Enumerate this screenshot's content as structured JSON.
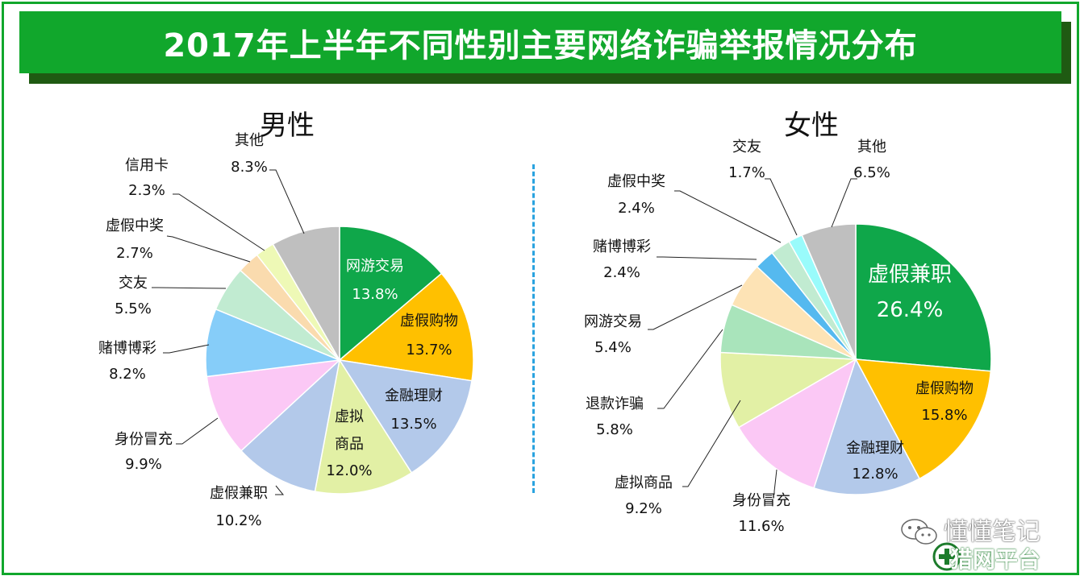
{
  "title": "2017年上半年不同性别主要网络诈骗举报情况分布",
  "watermark": {
    "line1": "懂懂笔记",
    "line2": "猎网平台"
  },
  "chart_data": [
    {
      "type": "pie",
      "title": "男性",
      "slices": [
        {
          "label": "网游交易",
          "display": [
            "网游交易"
          ],
          "value": 13.8,
          "value_text": "13.8%",
          "color": "#0fa74a",
          "label_position": "inside",
          "text_color": "#ffffff"
        },
        {
          "label": "虚假购物",
          "display": [
            "虚假购物"
          ],
          "value": 13.7,
          "value_text": "13.7%",
          "color": "#ffc000",
          "label_position": "inside",
          "text_color": "#111111"
        },
        {
          "label": "金融理财",
          "display": [
            "金融理财"
          ],
          "value": 13.5,
          "value_text": "13.5%",
          "color": "#b3c9ea",
          "label_position": "inside",
          "text_color": "#111111"
        },
        {
          "label": "虚拟商品",
          "display": [
            "虚拟",
            "商品"
          ],
          "value": 12.0,
          "value_text": "12.0%",
          "color": "#e2f0a5",
          "label_position": "inside",
          "text_color": "#111111"
        },
        {
          "label": "虚假兼职",
          "display": [
            "虚假兼职"
          ],
          "value": 10.2,
          "value_text": "10.2%",
          "color": "#b3c9ea",
          "label_position": "outside",
          "text_color": "#111111"
        },
        {
          "label": "身份冒充",
          "display": [
            "身份冒充"
          ],
          "value": 9.9,
          "value_text": "9.9%",
          "color": "#fbc8f5",
          "label_position": "outside",
          "text_color": "#111111"
        },
        {
          "label": "赌博博彩",
          "display": [
            "赌博博彩"
          ],
          "value": 8.2,
          "value_text": "8.2%",
          "color": "#86cdf9",
          "label_position": "outside",
          "text_color": "#111111"
        },
        {
          "label": "交友",
          "display": [
            "交友"
          ],
          "value": 5.5,
          "value_text": "5.5%",
          "color": "#c1ebd1",
          "label_position": "outside",
          "text_color": "#111111"
        },
        {
          "label": "虚假中奖",
          "display": [
            "虚假中奖"
          ],
          "value": 2.7,
          "value_text": "2.7%",
          "color": "#fadbae",
          "label_position": "outside",
          "text_color": "#111111"
        },
        {
          "label": "信用卡",
          "display": [
            "信用卡"
          ],
          "value": 2.3,
          "value_text": "2.3%",
          "color": "#eef9b6",
          "label_position": "outside",
          "text_color": "#111111"
        },
        {
          "label": "其他",
          "display": [
            "其他"
          ],
          "value": 8.3,
          "value_text": "8.3%",
          "color": "#bfbfbf",
          "label_position": "outside",
          "text_color": "#111111"
        }
      ]
    },
    {
      "type": "pie",
      "title": "女性",
      "slices": [
        {
          "label": "虚假兼职",
          "display": [
            "虚假兼职"
          ],
          "value": 26.4,
          "value_text": "26.4%",
          "color": "#0fa74a",
          "label_position": "inside",
          "text_color": "#ffffff"
        },
        {
          "label": "虚假购物",
          "display": [
            "虚假购物"
          ],
          "value": 15.8,
          "value_text": "15.8%",
          "color": "#ffc000",
          "label_position": "inside",
          "text_color": "#111111"
        },
        {
          "label": "金融理财",
          "display": [
            "金融理财"
          ],
          "value": 12.8,
          "value_text": "12.8%",
          "color": "#b3c9ea",
          "label_position": "inside",
          "text_color": "#111111"
        },
        {
          "label": "身份冒充",
          "display": [
            "身份冒充"
          ],
          "value": 11.6,
          "value_text": "11.6%",
          "color": "#fbc8f5",
          "label_position": "outside",
          "text_color": "#111111"
        },
        {
          "label": "虚拟商品",
          "display": [
            "虚拟商品"
          ],
          "value": 9.2,
          "value_text": "9.2%",
          "color": "#e2f0a5",
          "label_position": "outside",
          "text_color": "#111111"
        },
        {
          "label": "退款诈骗",
          "display": [
            "退款诈骗"
          ],
          "value": 5.8,
          "value_text": "5.8%",
          "color": "#a9e4bb",
          "label_position": "outside",
          "text_color": "#111111"
        },
        {
          "label": "网游交易",
          "display": [
            "网游交易"
          ],
          "value": 5.4,
          "value_text": "5.4%",
          "color": "#fde3b5",
          "label_position": "outside",
          "text_color": "#111111"
        },
        {
          "label": "赌博博彩",
          "display": [
            "赌博博彩"
          ],
          "value": 2.4,
          "value_text": "2.4%",
          "color": "#55b9ef",
          "label_position": "outside",
          "text_color": "#111111"
        },
        {
          "label": "虚假中奖",
          "display": [
            "虚假中奖"
          ],
          "value": 2.4,
          "value_text": "2.4%",
          "color": "#c1ebd1",
          "label_position": "outside",
          "text_color": "#111111"
        },
        {
          "label": "交友",
          "display": [
            "交友"
          ],
          "value": 1.7,
          "value_text": "1.7%",
          "color": "#99fbfb",
          "label_position": "outside",
          "text_color": "#111111"
        },
        {
          "label": "其他",
          "display": [
            "其他"
          ],
          "value": 6.5,
          "value_text": "6.5%",
          "color": "#bfbfbf",
          "label_position": "outside",
          "text_color": "#111111"
        }
      ]
    }
  ]
}
